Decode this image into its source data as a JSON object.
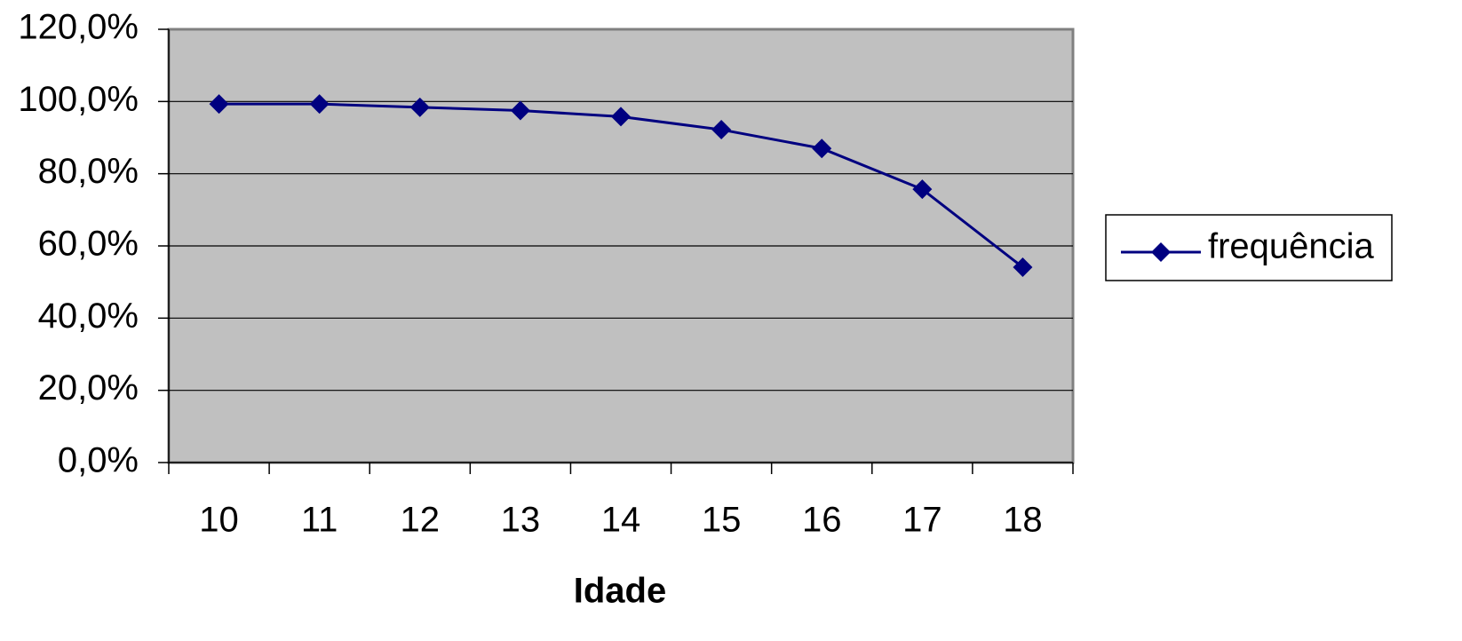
{
  "chart_data": {
    "type": "line",
    "x_label": "Idade",
    "categories": [
      "10",
      "11",
      "12",
      "13",
      "14",
      "15",
      "16",
      "17",
      "18"
    ],
    "series": [
      {
        "name": "frequência",
        "color": "#000080",
        "values": [
          99.3,
          99.3,
          98.4,
          97.5,
          95.8,
          92.2,
          87.0,
          75.7,
          54.1
        ]
      }
    ],
    "ylim": [
      0,
      120
    ],
    "yticks": [
      {
        "value": 0,
        "label": "0,0%"
      },
      {
        "value": 20,
        "label": "20,0%"
      },
      {
        "value": 40,
        "label": "40,0%"
      },
      {
        "value": 60,
        "label": "60,0%"
      },
      {
        "value": 80,
        "label": "80,0%"
      },
      {
        "value": 100,
        "label": "100,0%"
      },
      {
        "value": 120,
        "label": "120,0%"
      }
    ],
    "grid": true,
    "legend": "right",
    "plot_background": "#c0c0c0"
  }
}
